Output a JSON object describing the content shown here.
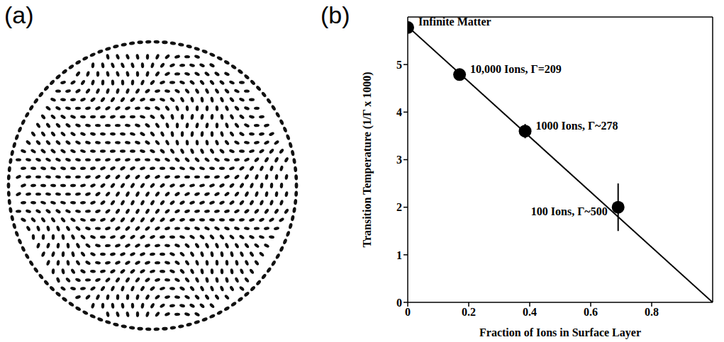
{
  "chart_data": [
    {
      "panel": "(a)",
      "type": "image"
    },
    {
      "panel": "(b)",
      "type": "scatter",
      "x_label": "Fraction of Ions in Surface Layer",
      "y_label": "Transition Temperature (1/Γ x 1000)",
      "xlim": [
        0,
        1
      ],
      "xticks": [
        0,
        0.2,
        0.4,
        0.6,
        0.8
      ],
      "ylim": [
        0,
        6
      ],
      "yticks": [
        0,
        1,
        2,
        3,
        4,
        5
      ],
      "series": [
        {
          "type": "scatter",
          "color": "#000000",
          "marker": "circle",
          "x": [
            0,
            0.17,
            0.385,
            0.69
          ],
          "values": [
            5.78,
            4.79,
            3.6,
            2.0
          ],
          "errors": [
            0,
            0,
            0.15,
            0.5
          ],
          "point_labels": [
            "Infinite Matter",
            "10,000 Ions, Γ=209",
            "1000 Ions, Γ~278",
            "100 Ions, Γ~500"
          ]
        },
        {
          "type": "line",
          "color": "#000000",
          "line_style": "solid",
          "x": [
            0,
            1
          ],
          "values": [
            5.8,
            0
          ]
        }
      ]
    }
  ]
}
